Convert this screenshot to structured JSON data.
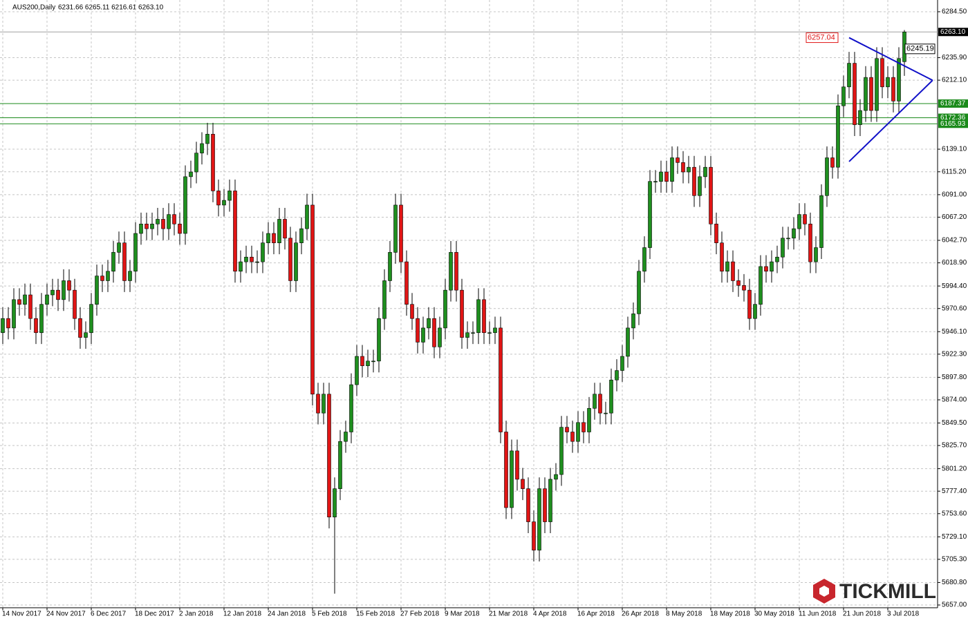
{
  "chart_data": {
    "type": "candlestick",
    "header": {
      "symbol": "AUS200,Daily",
      "values": "6231.66 6265.11 6216.61 6263.10"
    },
    "up_color": "#1f8f1f",
    "down_color": "#e01515",
    "grid": true,
    "ylim": [
      5654.1,
      6296.9
    ],
    "yticks": [
      {
        "value": 6284.5,
        "label": "6284.50"
      },
      {
        "value": 6235.9,
        "label": "6235.90"
      },
      {
        "value": 6212.1,
        "label": "6212.10"
      },
      {
        "value": 6139.1,
        "label": "6139.10"
      },
      {
        "value": 6115.2,
        "label": "6115.20"
      },
      {
        "value": 6091,
        "label": "6091.00"
      },
      {
        "value": 6067.2,
        "label": "6067.20"
      },
      {
        "value": 6042.7,
        "label": "6042.70"
      },
      {
        "value": 6018.9,
        "label": "6018.90"
      },
      {
        "value": 5994.4,
        "label": "5994.40"
      },
      {
        "value": 5970.6,
        "label": "5970.60"
      },
      {
        "value": 5946.1,
        "label": "5946.10"
      },
      {
        "value": 5922.3,
        "label": "5922.30"
      },
      {
        "value": 5897.8,
        "label": "5897.80"
      },
      {
        "value": 5874,
        "label": "5874.00"
      },
      {
        "value": 5849.5,
        "label": "5849.50"
      },
      {
        "value": 5825.7,
        "label": "5825.70"
      },
      {
        "value": 5801.2,
        "label": "5801.20"
      },
      {
        "value": 5777.4,
        "label": "5777.40"
      },
      {
        "value": 5753.6,
        "label": "5753.60"
      },
      {
        "value": 5729.1,
        "label": "5729.10"
      },
      {
        "value": 5705.3,
        "label": "5705.30"
      },
      {
        "value": 5680.8,
        "label": "5680.80"
      },
      {
        "value": 5657,
        "label": "5657.00"
      }
    ],
    "categories": [
      "14 Nov 2017",
      null,
      null,
      null,
      null,
      null,
      null,
      null,
      "24 Nov 2017",
      null,
      null,
      null,
      null,
      null,
      null,
      null,
      "6 Dec 2017",
      null,
      null,
      null,
      null,
      null,
      null,
      null,
      "18 Dec 2017",
      null,
      null,
      null,
      null,
      null,
      null,
      null,
      "2 Jan 2018",
      null,
      null,
      null,
      null,
      null,
      null,
      null,
      "12 Jan 2018",
      null,
      null,
      null,
      null,
      null,
      null,
      null,
      "24 Jan 2018",
      null,
      null,
      null,
      null,
      null,
      null,
      null,
      "5 Feb 2018",
      null,
      null,
      null,
      null,
      null,
      null,
      null,
      "15 Feb 2018",
      null,
      null,
      null,
      null,
      null,
      null,
      null,
      "27 Feb 2018",
      null,
      null,
      null,
      null,
      null,
      null,
      null,
      "9 Mar 2018",
      null,
      null,
      null,
      null,
      null,
      null,
      null,
      "21 Mar 2018",
      null,
      null,
      null,
      null,
      null,
      null,
      null,
      "4 Apr 2018",
      null,
      null,
      null,
      null,
      null,
      null,
      null,
      "16 Apr 2018",
      null,
      null,
      null,
      null,
      null,
      null,
      null,
      "26 Apr 2018",
      null,
      null,
      null,
      null,
      null,
      null,
      null,
      "8 May 2018",
      null,
      null,
      null,
      null,
      null,
      null,
      null,
      "18 May 2018",
      null,
      null,
      null,
      null,
      null,
      null,
      null,
      "30 May 2018",
      null,
      null,
      null,
      null,
      null,
      null,
      null,
      "11 Jun 2018",
      null,
      null,
      null,
      null,
      null,
      null,
      null,
      "21 Jun 2018",
      null,
      null,
      null,
      null,
      null,
      null,
      null,
      "3 Jul 2018",
      null,
      null,
      null
    ],
    "open": [
      5945,
      5960,
      5950,
      5980,
      5975,
      5985,
      5960,
      5945,
      5975,
      5985,
      5990,
      5980,
      6000,
      5990,
      5960,
      5940,
      5945,
      5975,
      6005,
      6000,
      6010,
      6030,
      6040,
      6000,
      6010,
      6050,
      6060,
      6055,
      6060,
      6065,
      6055,
      6070,
      6060,
      6050,
      6110,
      6115,
      6135,
      6145,
      6155,
      6095,
      6080,
      6085,
      6095,
      6010,
      6020,
      6025,
      6020,
      6020,
      6040,
      6050,
      6040,
      6065,
      6045,
      6000,
      6040,
      6055,
      6080,
      5880,
      5860,
      5880,
      5750,
      5780,
      5830,
      5840,
      5890,
      5920,
      5910,
      5915,
      5915,
      5960,
      6000,
      6030,
      6080,
      6020,
      5975,
      5960,
      5935,
      5950,
      5960,
      5930,
      5950,
      5990,
      6030,
      5990,
      5940,
      5945,
      5945,
      5980,
      5945,
      5945,
      5950,
      5840,
      5760,
      5820,
      5790,
      5780,
      5745,
      5715,
      5780,
      5745,
      5790,
      5795,
      5845,
      5840,
      5830,
      5850,
      5840,
      5865,
      5880,
      5860,
      5860,
      5895,
      5905,
      5920,
      5950,
      5965,
      6010,
      6035,
      6105,
      6105,
      6115,
      6105,
      6130,
      6125,
      6115,
      6120,
      6090,
      6110,
      6120,
      6060,
      6040,
      6010,
      6020,
      6000,
      5995,
      5990,
      5960,
      5975,
      6015,
      6010,
      6020,
      6025,
      6045,
      6045,
      6055,
      6070,
      6060,
      6020,
      6035,
      6090,
      6130,
      6120,
      6185,
      6205,
      6230,
      6165,
      6180,
      6215,
      6180,
      6235,
      6205,
      6215,
      6190,
      6231.66
    ],
    "high": [
      5972,
      5972,
      5992,
      5992,
      5997,
      5997,
      5972,
      5987,
      5997,
      6002,
      6002,
      6012,
      6012,
      6002,
      5972,
      5957,
      5987,
      6017,
      6017,
      6022,
      6042,
      6052,
      6052,
      6022,
      6062,
      6072,
      6072,
      6072,
      6077,
      6077,
      6082,
      6082,
      6072,
      6122,
      6127,
      6147,
      6157,
      6167,
      6167,
      6107,
      6097,
      6107,
      6107,
      6032,
      6037,
      6037,
      6032,
      6052,
      6062,
      6062,
      6077,
      6077,
      6057,
      6052,
      6067,
      6092,
      6092,
      5892,
      5892,
      5892,
      5792,
      5842,
      5852,
      5902,
      5932,
      5932,
      5927,
      5927,
      5972,
      6012,
      6042,
      6092,
      6092,
      6032,
      5987,
      5972,
      5962,
      5972,
      5972,
      5962,
      6002,
      6042,
      6042,
      6002,
      5957,
      5957,
      5992,
      5992,
      5957,
      5962,
      5962,
      5852,
      5832,
      5832,
      5802,
      5792,
      5757,
      5792,
      5792,
      5802,
      5807,
      5857,
      5857,
      5852,
      5862,
      5862,
      5877,
      5892,
      5892,
      5872,
      5907,
      5917,
      5932,
      5962,
      5977,
      6022,
      6047,
      6117,
      6117,
      6127,
      6127,
      6142,
      6142,
      6137,
      6132,
      6132,
      6122,
      6132,
      6132,
      6072,
      6052,
      6032,
      6032,
      6012,
      6007,
      6002,
      5987,
      6027,
      6027,
      6032,
      6037,
      6057,
      6057,
      6067,
      6082,
      6082,
      6072,
      6047,
      6102,
      6142,
      6142,
      6197,
      6217,
      6242,
      6242,
      6192,
      6227,
      6227,
      6247,
      6247,
      6227,
      6227,
      6247,
      6265.11
    ],
    "low": [
      5933,
      5938,
      5938,
      5963,
      5963,
      5948,
      5933,
      5933,
      5963,
      5973,
      5968,
      5968,
      5978,
      5948,
      5928,
      5928,
      5933,
      5963,
      5988,
      5988,
      5998,
      6018,
      5988,
      5988,
      5998,
      6038,
      6043,
      6043,
      6048,
      6043,
      6043,
      6048,
      6038,
      6038,
      6098,
      6103,
      6123,
      6133,
      6083,
      6068,
      6068,
      6073,
      5998,
      5998,
      6008,
      6008,
      6008,
      6008,
      6028,
      6028,
      6028,
      6033,
      5988,
      5988,
      6028,
      6043,
      5868,
      5848,
      5848,
      5738,
      5669,
      5768,
      5818,
      5828,
      5878,
      5898,
      5898,
      5903,
      5903,
      5948,
      5988,
      6018,
      6008,
      5963,
      5948,
      5923,
      5923,
      5938,
      5918,
      5918,
      5938,
      5978,
      5978,
      5928,
      5928,
      5933,
      5933,
      5933,
      5933,
      5933,
      5828,
      5748,
      5748,
      5778,
      5768,
      5733,
      5703,
      5703,
      5733,
      5733,
      5778,
      5783,
      5828,
      5818,
      5818,
      5828,
      5828,
      5853,
      5848,
      5848,
      5848,
      5883,
      5893,
      5908,
      5938,
      5953,
      5998,
      6023,
      6093,
      6093,
      6093,
      6093,
      6113,
      6103,
      6103,
      6078,
      6078,
      6098,
      6048,
      6028,
      5998,
      5998,
      5988,
      5983,
      5978,
      5948,
      5948,
      5963,
      5998,
      5998,
      6008,
      6013,
      6033,
      6033,
      6043,
      6048,
      6008,
      6008,
      6023,
      6078,
      6108,
      6108,
      6173,
      6193,
      6153,
      6153,
      6168,
      6168,
      6168,
      6193,
      6193,
      6178,
      6178,
      6216.61
    ],
    "close": [
      5960,
      5950,
      5980,
      5975,
      5985,
      5960,
      5945,
      5975,
      5985,
      5990,
      5980,
      6000,
      5990,
      5960,
      5940,
      5945,
      5975,
      6005,
      6000,
      6010,
      6030,
      6040,
      6000,
      6010,
      6050,
      6060,
      6055,
      6060,
      6065,
      6055,
      6070,
      6060,
      6050,
      6110,
      6115,
      6135,
      6145,
      6155,
      6095,
      6080,
      6085,
      6095,
      6010,
      6020,
      6025,
      6020,
      6020,
      6040,
      6050,
      6040,
      6065,
      6045,
      6000,
      6040,
      6055,
      6080,
      5880,
      5860,
      5880,
      5750,
      5780,
      5830,
      5840,
      5890,
      5920,
      5910,
      5915,
      5915,
      5960,
      6000,
      6030,
      6080,
      6020,
      5975,
      5960,
      5935,
      5950,
      5960,
      5930,
      5950,
      5990,
      6030,
      5990,
      5940,
      5945,
      5945,
      5980,
      5945,
      5945,
      5950,
      5840,
      5760,
      5820,
      5790,
      5780,
      5745,
      5715,
      5780,
      5745,
      5790,
      5795,
      5845,
      5840,
      5830,
      5850,
      5840,
      5865,
      5880,
      5860,
      5860,
      5895,
      5905,
      5920,
      5950,
      5965,
      6010,
      6035,
      6105,
      6105,
      6115,
      6105,
      6130,
      6125,
      6115,
      6120,
      6090,
      6110,
      6120,
      6060,
      6040,
      6010,
      6020,
      6000,
      5995,
      5990,
      5960,
      5975,
      6015,
      6010,
      6020,
      6025,
      6045,
      6045,
      6055,
      6070,
      6060,
      6020,
      6035,
      6090,
      6130,
      6120,
      6185,
      6205,
      6230,
      6165,
      6180,
      6215,
      6180,
      6235,
      6205,
      6215,
      6190,
      6235,
      6263.1
    ],
    "last_price": {
      "value": 6263.1,
      "label": "6263.10",
      "color": "#a0a0a0"
    },
    "levels": {
      "color": "#1a8a1a",
      "values": [
        6187.37,
        6172.36,
        6165.93
      ]
    },
    "triangle": {
      "color": "#1010c8",
      "upper_start": 6257.04,
      "lower_start": 6126,
      "apex": 6212,
      "label_color": "#e01515"
    },
    "marker_label": 6245.19,
    "watermark": "TICKMILL"
  }
}
